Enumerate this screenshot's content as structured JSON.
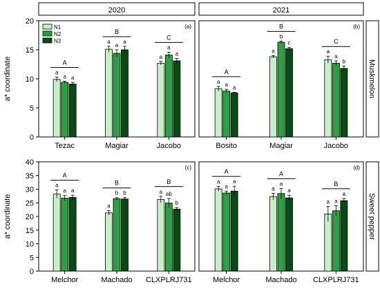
{
  "legend": [
    {
      "name": "N1",
      "color": "#c8f0c8"
    },
    {
      "name": "N2",
      "color": "#2ea043"
    },
    {
      "name": "N3",
      "color": "#0b4a14"
    }
  ],
  "col_headers": [
    "2020",
    "2021"
  ],
  "row_labels": [
    "Muskmelon",
    "Sweet pepper"
  ],
  "ylabel": "a* coordinate",
  "chart_data": [
    {
      "type": "bar",
      "panel": "(a)",
      "year": "2020",
      "crop": "Muskmelon",
      "categories": [
        "Tezac",
        "Magiar",
        "Jacobo"
      ],
      "ylim": [
        0,
        20
      ],
      "yticks": [
        "0",
        "5",
        "10",
        "15",
        "20"
      ],
      "series": [
        {
          "name": "N1",
          "values": [
            9.9,
            15.1,
            12.7
          ],
          "errors": [
            0.4,
            0.5,
            0.3
          ]
        },
        {
          "name": "N2",
          "values": [
            9.4,
            14.4,
            14.1
          ],
          "errors": [
            0.2,
            0.6,
            0.5
          ]
        },
        {
          "name": "N3",
          "values": [
            9.1,
            15.0,
            13.1
          ],
          "errors": [
            0.3,
            0.6,
            0.4
          ]
        }
      ],
      "letters": [
        [
          "a",
          "a",
          "a"
        ],
        [
          "a",
          "a",
          "a"
        ],
        [
          "a",
          "a",
          "a"
        ]
      ],
      "groups": [
        "A",
        "B",
        "C"
      ]
    },
    {
      "type": "bar",
      "panel": "(b)",
      "year": "2021",
      "crop": "Muskmelon",
      "categories": [
        "Bosito",
        "Magiar",
        "Jacobo"
      ],
      "ylim": [
        0,
        20
      ],
      "yticks": [
        "0",
        "5",
        "10",
        "15",
        "20"
      ],
      "series": [
        {
          "name": "N1",
          "values": [
            8.3,
            13.8,
            13.3
          ],
          "errors": [
            0.4,
            0.2,
            0.6
          ]
        },
        {
          "name": "N2",
          "values": [
            7.9,
            16.3,
            12.7
          ],
          "errors": [
            0.3,
            0.2,
            0.4
          ]
        },
        {
          "name": "N3",
          "values": [
            7.6,
            15.2,
            11.8
          ],
          "errors": [
            0.1,
            0.2,
            0.4
          ]
        }
      ],
      "letters": [
        [
          "a",
          "a",
          "a"
        ],
        [
          "a",
          "b",
          "c"
        ],
        [
          "a",
          "a",
          "b"
        ]
      ],
      "groups": [
        "A",
        "B",
        "C"
      ]
    },
    {
      "type": "bar",
      "panel": "(c)",
      "year": "2020",
      "crop": "Sweet pepper",
      "categories": [
        "Melchor",
        "Machado",
        "CLXPLRJ731"
      ],
      "ylim": [
        0,
        40
      ],
      "yticks": [
        "0",
        "5",
        "10",
        "15",
        "20",
        "25",
        "30",
        "35",
        "40"
      ],
      "series": [
        {
          "name": "N1",
          "values": [
            28.2,
            21.3,
            26.2
          ],
          "errors": [
            1.5,
            0.8,
            1.2
          ]
        },
        {
          "name": "N2",
          "values": [
            26.7,
            26.5,
            24.9
          ],
          "errors": [
            1.0,
            0.4,
            1.7
          ]
        },
        {
          "name": "N3",
          "values": [
            27.0,
            26.4,
            22.7
          ],
          "errors": [
            0.8,
            0.5,
            0.6
          ]
        }
      ],
      "letters": [
        [
          "a",
          "a",
          "a"
        ],
        [
          "a",
          "b",
          "b"
        ],
        [
          "a",
          "ab",
          "b"
        ]
      ],
      "groups": [
        "A",
        "B",
        "B"
      ]
    },
    {
      "type": "bar",
      "panel": "(d)",
      "year": "2021",
      "crop": "Sweet pepper",
      "categories": [
        "Melchor",
        "Machado",
        "CLXPLRJ731"
      ],
      "ylim": [
        0,
        40
      ],
      "yticks": [
        "0",
        "5",
        "10",
        "15",
        "20",
        "25",
        "30",
        "35",
        "40"
      ],
      "series": [
        {
          "name": "N1",
          "values": [
            30.1,
            27.3,
            20.9
          ],
          "errors": [
            0.9,
            1.2,
            2.8
          ]
        },
        {
          "name": "N2",
          "values": [
            28.6,
            28.4,
            22.1
          ],
          "errors": [
            0.7,
            1.9,
            1.8
          ]
        },
        {
          "name": "N3",
          "values": [
            29.3,
            26.8,
            25.8
          ],
          "errors": [
            1.8,
            1.0,
            0.8
          ]
        }
      ],
      "letters": [
        [
          "a",
          "a",
          "a"
        ],
        [
          "a",
          "a",
          "a"
        ],
        [
          "a",
          "a",
          "a"
        ]
      ],
      "groups": [
        "A",
        "A",
        "B"
      ]
    }
  ]
}
